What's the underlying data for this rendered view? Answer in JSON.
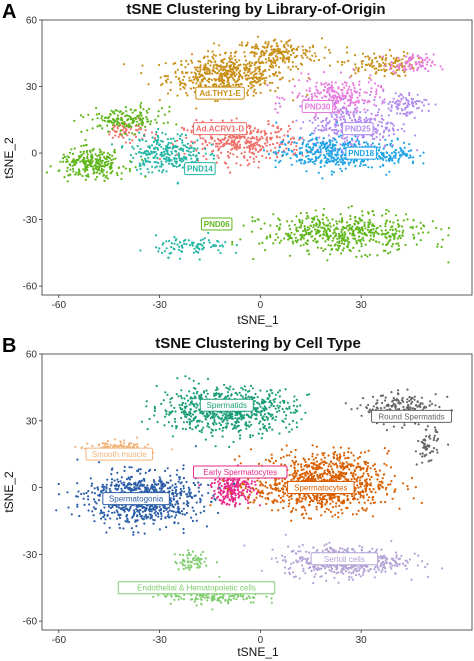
{
  "panels": [
    {
      "letter": "A",
      "colors": {
        "Ad.THY1-E": "#c9901a",
        "Ad.ACRV1-D": "#ef6f6a",
        "PND30": "#e77be0",
        "PND25": "#b08cf0",
        "PND18": "#20a4e6",
        "PND14": "#25b6a6",
        "PND06": "#5fb61a"
      }
    },
    {
      "letter": "B",
      "colors": {
        "Spermatids": "#1b9e77",
        "Round Spermatids": "#666666",
        "Smooth muscle": "#f2b47c",
        "Early Spermatocytes": "#e7298a",
        "Spermatogonia": "#2c5fa8",
        "Spermatocytes": "#d95f02",
        "Sertoli cells": "#b3a3d6",
        "Endothelial & Hematopoietic cells": "#7fcc6e"
      }
    }
  ],
  "chart_data": [
    {
      "type": "scatter",
      "title": "tSNE Clustering by Library-of-Origin",
      "xlabel": "tSNE_1",
      "ylabel": "tSNE_2",
      "xlim": [
        -65,
        63
      ],
      "ylim": [
        -64,
        60
      ],
      "x_ticks": [
        -60,
        -30,
        0,
        30
      ],
      "y_ticks": [
        -60,
        -30,
        0,
        30,
        60
      ],
      "grid": false,
      "legend": "none (labels placed on clusters)",
      "series": [
        {
          "name": "Ad.THY1-E",
          "centroid": [
            -12,
            27
          ]
        },
        {
          "name": "Ad.ACRV1-D",
          "centroid": [
            -12,
            11
          ]
        },
        {
          "name": "PND30",
          "centroid": [
            17,
            21
          ]
        },
        {
          "name": "PND25",
          "centroid": [
            29,
            11
          ]
        },
        {
          "name": "PND18",
          "centroid": [
            30,
            0
          ]
        },
        {
          "name": "PND14",
          "centroid": [
            -18,
            -7
          ]
        },
        {
          "name": "PND06",
          "centroid": [
            -13,
            -32
          ]
        }
      ]
    },
    {
      "type": "scatter",
      "title": "tSNE Clustering by Cell Type",
      "xlabel": "tSNE_1",
      "ylabel": "tSNE_2",
      "xlim": [
        -65,
        63
      ],
      "ylim": [
        -64,
        60
      ],
      "x_ticks": [
        -60,
        -30,
        0,
        30
      ],
      "y_ticks": [
        -60,
        -30,
        0,
        30,
        60
      ],
      "grid": false,
      "legend": "none (labels placed on clusters)",
      "series": [
        {
          "name": "Spermatids",
          "centroid": [
            -10,
            37
          ]
        },
        {
          "name": "Round Spermatids",
          "centroid": [
            45,
            32
          ]
        },
        {
          "name": "Smooth muscle",
          "centroid": [
            -42,
            15
          ]
        },
        {
          "name": "Early Spermatocytes",
          "centroid": [
            -6,
            7
          ]
        },
        {
          "name": "Spermatogonia",
          "centroid": [
            -37,
            -5
          ]
        },
        {
          "name": "Spermatocytes",
          "centroid": [
            18,
            0
          ]
        },
        {
          "name": "Sertoli cells",
          "centroid": [
            25,
            -32
          ]
        },
        {
          "name": "Endothelial & Hematopoietic cells",
          "centroid": [
            -19,
            -45
          ]
        }
      ]
    }
  ]
}
